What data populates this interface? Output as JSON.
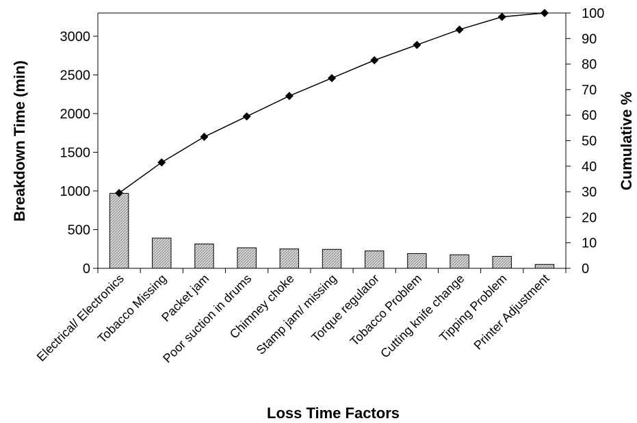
{
  "chart_data": {
    "type": "bar",
    "title": "",
    "xlabel": "Loss Time Factors",
    "ylabel": "Breakdown Time (min)",
    "y2label": "Cumulative %",
    "categories": [
      "Electrical/ Electronics",
      "Tobacco Missing",
      "Packet jam",
      "Poor suction in drums",
      "Chimney choke",
      "Stamp jam/ missing",
      "Torque regulator",
      "Tobacco Problem",
      "Cutting knife change",
      "Tipping Problem",
      "Printer Adjustment"
    ],
    "series": [
      {
        "type": "bar",
        "axis": "left",
        "values": [
          970,
          390,
          315,
          265,
          250,
          245,
          225,
          190,
          175,
          155,
          50
        ]
      },
      {
        "type": "line",
        "axis": "right",
        "marker": "diamond",
        "values": [
          29.5,
          41.5,
          51.5,
          59.5,
          67.5,
          74.5,
          81.5,
          87.5,
          93.5,
          98.5,
          100
        ]
      }
    ],
    "ylim": [
      0,
      3300
    ],
    "y2lim": [
      0,
      100
    ],
    "yticks": [
      0,
      500,
      1000,
      1500,
      2000,
      2500,
      3000
    ],
    "y2ticks": [
      0,
      10,
      20,
      30,
      40,
      50,
      60,
      70,
      80,
      90,
      100
    ],
    "grid": false,
    "legend": "none",
    "colors": {
      "bar_fill": "#c8c8c8",
      "bar_stroke": "#000000",
      "line": "#000000",
      "marker": "#000000"
    }
  }
}
